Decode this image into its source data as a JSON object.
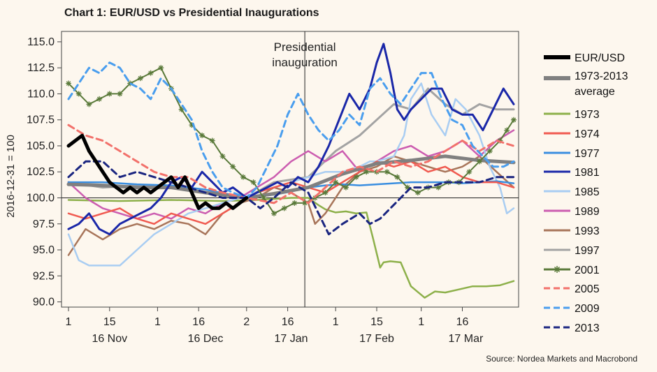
{
  "title": "Chart 1: EUR/USD vs Presidential Inaugurations",
  "source": "Source: Nordea Markets and Macrobond",
  "chart_data": {
    "type": "line",
    "title": "Chart 1: EUR/USD vs Presidential Inaugurations",
    "ylabel": "2016-12-31 = 100",
    "xlabel": "",
    "ylim": [
      89.5,
      116.0
    ],
    "xlim": [
      0,
      130
    ],
    "y_ticks": [
      "115.0",
      "112.5",
      "110.0",
      "107.5",
      "105.0",
      "102.5",
      "100.0",
      "97.5",
      "95.0",
      "92.5",
      "90.0"
    ],
    "x_ticks": [
      {
        "x": 0,
        "label": "1"
      },
      {
        "x": 12,
        "label": "15"
      },
      {
        "x": 26,
        "label": "1"
      },
      {
        "x": 38,
        "label": "16"
      },
      {
        "x": 52,
        "label": "2"
      },
      {
        "x": 64,
        "label": "16"
      },
      {
        "x": 78,
        "label": "1"
      },
      {
        "x": 90,
        "label": "15"
      },
      {
        "x": 103,
        "label": "1"
      },
      {
        "x": 115,
        "label": "16"
      }
    ],
    "month_labels": [
      {
        "x": 12,
        "label": "16 Nov"
      },
      {
        "x": 40,
        "label": "16 Dec"
      },
      {
        "x": 65,
        "label": "17 Jan"
      },
      {
        "x": 90,
        "label": "17 Feb"
      },
      {
        "x": 116,
        "label": "17 Mar"
      }
    ],
    "annotation": {
      "x": 69,
      "label_line1": "Presidential",
      "label_line2": "inauguration"
    },
    "series": [
      {
        "name": "1973",
        "color": "#8db04a",
        "width": 2.5,
        "dash": "",
        "marker": "",
        "x": [
          0,
          15,
          30,
          45,
          55,
          60,
          65,
          70,
          73,
          75,
          78,
          81,
          84,
          87,
          89,
          91,
          92,
          94,
          97,
          100,
          104,
          107,
          110,
          114,
          118,
          122,
          126,
          130
        ],
        "y": [
          99.8,
          99.7,
          99.8,
          99.7,
          99.8,
          99.9,
          100.0,
          100.0,
          99.3,
          98.9,
          98.6,
          98.7,
          98.5,
          98.6,
          96.0,
          93.3,
          93.8,
          93.9,
          93.8,
          91.5,
          90.4,
          91.0,
          90.9,
          91.2,
          91.5,
          91.5,
          91.6,
          92.0
        ]
      },
      {
        "name": "1997",
        "color": "#a3a3a3",
        "width": 3,
        "dash": "",
        "marker": "",
        "x": [
          0,
          10,
          20,
          30,
          40,
          52,
          60,
          70,
          78,
          85,
          90,
          95,
          100,
          105,
          110,
          115,
          120,
          125,
          130
        ],
        "y": [
          101.5,
          101.0,
          101.2,
          101.0,
          100.5,
          100.0,
          101.5,
          102.0,
          104.5,
          106.0,
          107.5,
          109.0,
          108.5,
          110.5,
          109.0,
          108.0,
          109.0,
          108.5,
          108.5
        ]
      },
      {
        "name": "1993",
        "color": "#a8755a",
        "width": 2.5,
        "dash": "",
        "marker": "",
        "x": [
          0,
          5,
          10,
          15,
          20,
          25,
          30,
          35,
          40,
          45,
          50,
          55,
          60,
          65,
          70,
          72,
          75,
          80,
          85,
          90,
          95,
          100,
          105,
          110,
          115,
          120,
          125,
          130
        ],
        "y": [
          94.5,
          97.0,
          96.0,
          97.0,
          97.5,
          97.0,
          97.8,
          97.5,
          96.5,
          98.5,
          99.5,
          100.0,
          101.0,
          100.5,
          99.5,
          97.5,
          98.5,
          101.0,
          102.5,
          103.0,
          104.0,
          103.5,
          103.0,
          102.5,
          103.0,
          104.0,
          102.5,
          101.0
        ]
      },
      {
        "name": "1989",
        "color": "#cc5db0",
        "width": 2.5,
        "dash": "",
        "marker": "",
        "x": [
          0,
          5,
          10,
          15,
          20,
          25,
          30,
          35,
          40,
          45,
          50,
          55,
          60,
          65,
          70,
          75,
          80,
          85,
          90,
          95,
          100,
          105,
          110,
          115,
          120,
          125,
          130
        ],
        "y": [
          101.5,
          100.0,
          99.0,
          98.5,
          98.0,
          98.5,
          98.0,
          99.0,
          98.5,
          99.5,
          100.0,
          101.0,
          102.0,
          103.5,
          104.5,
          103.5,
          104.5,
          102.5,
          103.5,
          104.5,
          105.0,
          104.0,
          104.5,
          105.5,
          104.0,
          105.5,
          106.5
        ]
      },
      {
        "name": "1985",
        "color": "#a9cdf2",
        "width": 2.5,
        "dash": "",
        "marker": "",
        "x": [
          0,
          3,
          6,
          10,
          15,
          20,
          25,
          30,
          35,
          40,
          45,
          50,
          55,
          60,
          65,
          70,
          75,
          80,
          85,
          88,
          90,
          95,
          98,
          100,
          103,
          106,
          110,
          113,
          116,
          120,
          123,
          126,
          128,
          130
        ],
        "y": [
          96.5,
          94.0,
          93.5,
          93.5,
          93.5,
          95.0,
          96.5,
          97.5,
          98.5,
          99.0,
          99.5,
          100.0,
          100.5,
          101.0,
          101.5,
          102.0,
          102.5,
          102.5,
          103.0,
          103.5,
          103.5,
          104.0,
          106.0,
          109.5,
          111.0,
          108.0,
          106.0,
          109.5,
          108.5,
          106.0,
          103.0,
          101.0,
          98.5,
          99.0
        ]
      },
      {
        "name": "1977",
        "color": "#3a8ee0",
        "width": 2.5,
        "dash": "",
        "marker": "",
        "x": [
          0,
          10,
          20,
          30,
          40,
          52,
          60,
          65,
          70,
          75,
          80,
          85,
          90,
          95,
          100,
          105,
          110,
          115,
          120,
          125,
          130
        ],
        "y": [
          101.5,
          101.5,
          101.3,
          101.2,
          100.8,
          100.0,
          100.3,
          100.6,
          101.0,
          101.2,
          101.3,
          101.2,
          101.3,
          101.4,
          101.5,
          101.5,
          101.5,
          101.4,
          101.5,
          101.6,
          101.4
        ]
      },
      {
        "name": "1974",
        "color": "#f05a50",
        "width": 2.5,
        "dash": "",
        "marker": "",
        "x": [
          0,
          5,
          10,
          15,
          20,
          25,
          30,
          35,
          40,
          45,
          50,
          52,
          55,
          60,
          65,
          70,
          75,
          80,
          85,
          90,
          95,
          100,
          105,
          110,
          115,
          120,
          125,
          130
        ],
        "y": [
          98.5,
          98.0,
          98.5,
          99.0,
          98.0,
          97.5,
          98.5,
          98.0,
          97.5,
          98.5,
          99.5,
          100.0,
          100.5,
          101.0,
          101.5,
          101.0,
          100.5,
          101.5,
          102.5,
          103.5,
          103.0,
          103.5,
          102.5,
          103.0,
          102.0,
          101.5,
          101.5,
          101.0
        ]
      },
      {
        "name": "1973-2013 average",
        "color": "#808080",
        "width": 5,
        "dash": "",
        "marker": "",
        "x": [
          0,
          10,
          20,
          30,
          40,
          52,
          60,
          70,
          80,
          90,
          100,
          110,
          120,
          130
        ],
        "y": [
          101.3,
          101.2,
          101.0,
          101.0,
          100.5,
          100.0,
          100.4,
          101.0,
          102.3,
          103.3,
          103.6,
          104.0,
          103.6,
          103.4
        ]
      },
      {
        "name": "1981",
        "color": "#1a27a8",
        "width": 3,
        "dash": "",
        "marker": "",
        "x": [
          0,
          3,
          6,
          9,
          12,
          15,
          18,
          21,
          24,
          27,
          30,
          33,
          36,
          39,
          42,
          45,
          48,
          52,
          55,
          58,
          61,
          64,
          67,
          70,
          73,
          76,
          79,
          82,
          85,
          88,
          90,
          92,
          94,
          96,
          98,
          100,
          103,
          106,
          109,
          112,
          115,
          118,
          121,
          124,
          127,
          130
        ],
        "y": [
          97.0,
          97.5,
          98.5,
          97.0,
          96.5,
          97.5,
          98.0,
          98.5,
          99.0,
          100.0,
          101.5,
          102.0,
          101.0,
          102.5,
          101.5,
          100.5,
          101.0,
          100.0,
          100.5,
          101.0,
          101.5,
          101.0,
          102.0,
          101.5,
          103.0,
          105.0,
          107.5,
          110.0,
          108.5,
          110.5,
          113.0,
          114.8,
          112.0,
          108.5,
          107.5,
          108.5,
          109.5,
          110.5,
          110.5,
          108.5,
          108.0,
          108.0,
          106.5,
          108.5,
          110.5,
          109.0
        ]
      },
      {
        "name": "2001",
        "color": "#5a7a3a",
        "width": 2,
        "dash": "",
        "marker": "star",
        "x": [
          0,
          3,
          6,
          9,
          12,
          15,
          18,
          21,
          24,
          27,
          30,
          33,
          36,
          39,
          42,
          45,
          48,
          51,
          54,
          57,
          60,
          63,
          66,
          69,
          72,
          75,
          78,
          81,
          84,
          87,
          90,
          93,
          96,
          99,
          102,
          105,
          108,
          111,
          114,
          117,
          120,
          123,
          126,
          128,
          130
        ],
        "y": [
          111.0,
          110.0,
          109.0,
          109.5,
          110.0,
          110.0,
          111.0,
          111.5,
          112.0,
          112.5,
          110.5,
          108.5,
          107.0,
          106.0,
          105.5,
          104.0,
          103.0,
          102.0,
          101.5,
          100.0,
          98.5,
          99.0,
          99.5,
          99.5,
          100.0,
          100.5,
          101.5,
          101.0,
          102.0,
          102.5,
          102.5,
          102.5,
          102.0,
          101.0,
          100.5,
          101.0,
          101.0,
          101.5,
          101.5,
          102.5,
          103.5,
          104.5,
          105.5,
          106.5,
          107.5
        ]
      },
      {
        "name": "2005",
        "color": "#f2716b",
        "width": 3,
        "dash": "9,6",
        "marker": "",
        "x": [
          0,
          5,
          10,
          15,
          20,
          25,
          30,
          35,
          40,
          45,
          52,
          60,
          65,
          70,
          75,
          80,
          85,
          90,
          95,
          100,
          105,
          110,
          115,
          120,
          125,
          130
        ],
        "y": [
          107.0,
          106.0,
          105.5,
          104.5,
          103.5,
          102.5,
          102.0,
          102.0,
          101.0,
          100.5,
          100.0,
          99.5,
          100.5,
          99.5,
          101.0,
          102.5,
          103.0,
          102.5,
          103.5,
          103.0,
          103.5,
          104.5,
          105.5,
          104.5,
          105.5,
          105.0
        ]
      },
      {
        "name": "2009",
        "color": "#4a9eee",
        "width": 3,
        "dash": "9,6",
        "marker": "",
        "x": [
          0,
          3,
          6,
          9,
          12,
          15,
          18,
          21,
          24,
          27,
          30,
          33,
          36,
          39,
          42,
          45,
          48,
          52,
          55,
          58,
          61,
          64,
          67,
          70,
          73,
          76,
          79,
          82,
          85,
          88,
          91,
          94,
          97,
          100,
          103,
          106,
          109,
          112,
          115,
          118,
          121,
          124,
          127,
          130
        ],
        "y": [
          109.5,
          111.0,
          112.5,
          112.0,
          113.0,
          112.5,
          111.0,
          110.5,
          109.5,
          111.5,
          110.5,
          109.0,
          107.5,
          104.5,
          102.5,
          101.0,
          100.5,
          100.0,
          101.0,
          103.0,
          105.0,
          108.0,
          110.0,
          108.0,
          106.5,
          105.5,
          106.5,
          108.0,
          107.0,
          110.5,
          111.5,
          110.0,
          109.0,
          110.5,
          112.0,
          112.0,
          109.5,
          107.5,
          107.0,
          105.0,
          104.0,
          103.0,
          103.0,
          103.5
        ]
      },
      {
        "name": "2013",
        "color": "#1a2580",
        "width": 3,
        "dash": "9,6",
        "marker": "",
        "x": [
          0,
          5,
          10,
          15,
          20,
          25,
          30,
          35,
          40,
          45,
          52,
          56,
          60,
          65,
          70,
          73,
          76,
          80,
          85,
          88,
          91,
          94,
          97,
          100,
          105,
          110,
          115,
          120,
          125,
          130
        ],
        "y": [
          102.0,
          103.5,
          103.5,
          102.0,
          102.5,
          102.0,
          101.5,
          101.0,
          100.5,
          100.0,
          100.0,
          99.0,
          100.0,
          101.5,
          100.5,
          98.5,
          96.5,
          97.5,
          98.5,
          97.5,
          98.0,
          99.0,
          100.0,
          101.0,
          101.0,
          101.5,
          101.5,
          101.5,
          102.0,
          102.0
        ]
      },
      {
        "name": "EUR/USD",
        "color": "#000000",
        "width": 5,
        "dash": "",
        "marker": "",
        "x": [
          0,
          2,
          4,
          6,
          8,
          10,
          12,
          14,
          16,
          18,
          20,
          22,
          24,
          26,
          28,
          30,
          32,
          34,
          36,
          38,
          40,
          42,
          44,
          46,
          48,
          50,
          52
        ],
        "y": [
          105.0,
          105.5,
          106.0,
          104.5,
          103.5,
          102.5,
          101.5,
          101.0,
          100.5,
          101.0,
          100.5,
          101.0,
          100.5,
          101.0,
          101.5,
          102.0,
          101.0,
          102.0,
          100.5,
          99.0,
          99.5,
          99.0,
          99.0,
          99.5,
          99.0,
          99.5,
          100.0
        ]
      }
    ],
    "legend_order": [
      "EUR/USD",
      "1973-2013 average",
      "1973",
      "1974",
      "1977",
      "1981",
      "1985",
      "1989",
      "1993",
      "1997",
      "2001",
      "2005",
      "2009",
      "2013"
    ]
  }
}
